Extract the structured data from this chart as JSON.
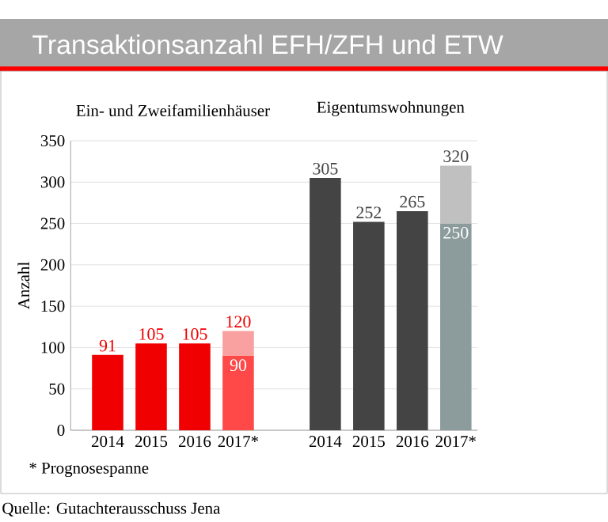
{
  "chart_data": {
    "type": "bar",
    "title": "Transaktionsanzahl EFH/ZFH und ETW",
    "ylabel": "Anzahl",
    "categories": [
      "2014",
      "2015",
      "2016",
      "2017*",
      null,
      "2014",
      "2015",
      "2016",
      "2017*"
    ],
    "stacked": true,
    "series": [
      {
        "colors": [
          "#f00000",
          "#f00000",
          "#f00000",
          "#ff4848",
          "#ffffff",
          "#444444",
          "#444444",
          "#444444",
          "#8c9c9c"
        ],
        "values": [
          91,
          105,
          105,
          90,
          null,
          305,
          252,
          265,
          250
        ],
        "value_labels": [
          "91",
          "105",
          "105",
          "90",
          null,
          "305",
          "252",
          "265",
          "250"
        ]
      },
      {
        "colors": [
          "#ffffff",
          "#ffffff",
          "#ffffff",
          "#f9a0a0",
          "#ffffff",
          "#ffffff",
          "#ffffff",
          "#ffffff",
          "#c0c0c0"
        ],
        "values": [
          null,
          null,
          null,
          30,
          null,
          null,
          null,
          null,
          70
        ]
      }
    ],
    "totals": [
      null,
      null,
      null,
      "120",
      null,
      null,
      null,
      null,
      "320"
    ],
    "ylim": [
      0,
      350
    ],
    "yticks": [
      0,
      50,
      100,
      150,
      200,
      250,
      300,
      350
    ],
    "grid": "y",
    "annotations": [
      "Ein- und Zweifamilienhäuser",
      "Eigentumswohnungen",
      "* Prognosespanne",
      "Quelle: Gutachterausschuss Jena"
    ]
  }
}
